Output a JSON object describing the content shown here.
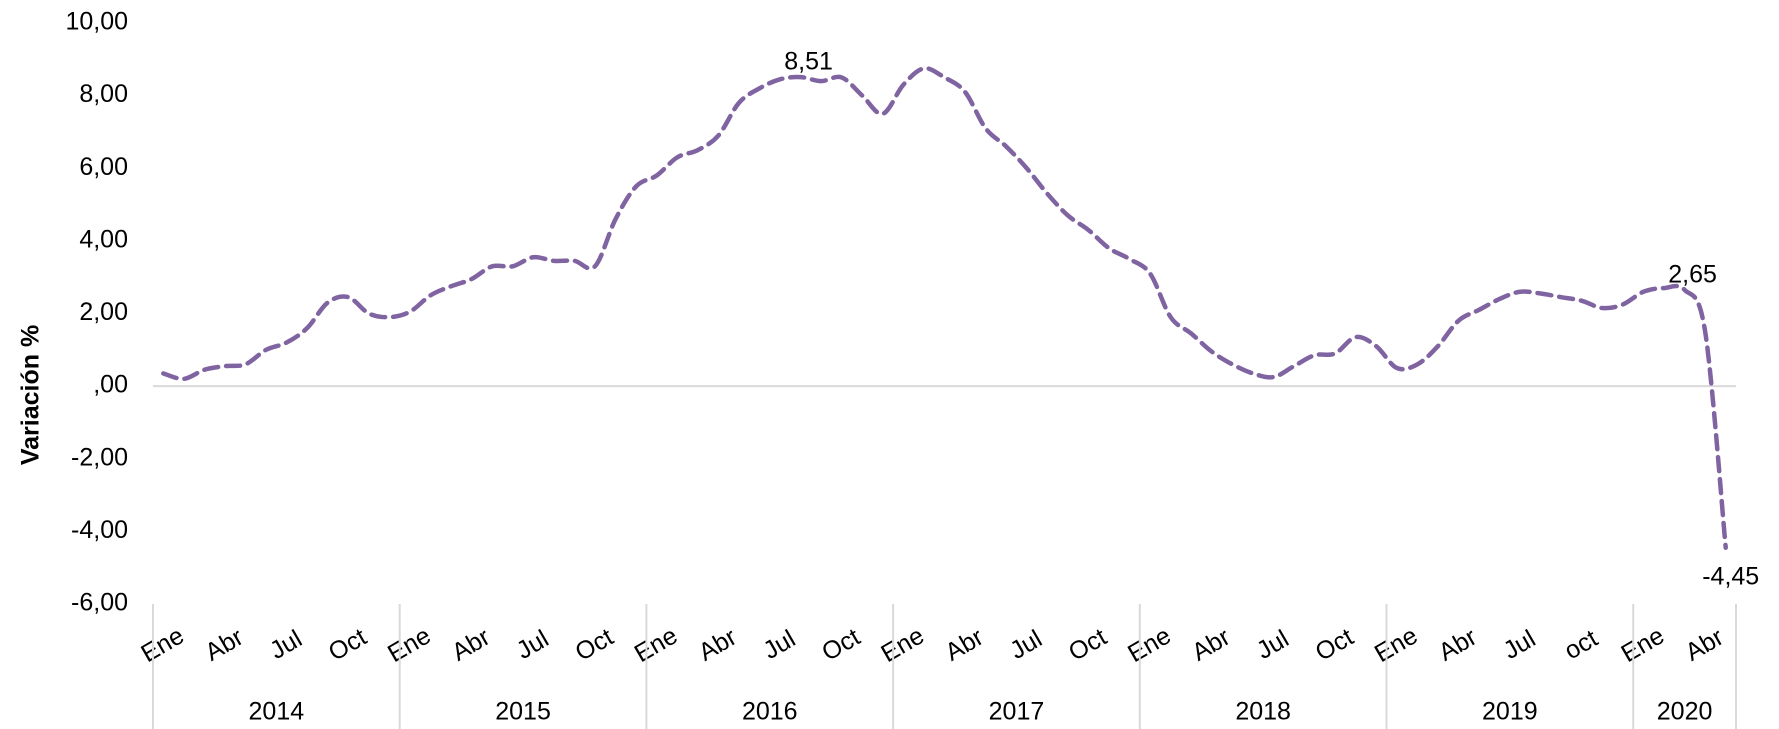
{
  "chart_data": {
    "type": "line",
    "y_label": "Variación %",
    "categories": [
      "Ene",
      null,
      null,
      "Abr",
      null,
      null,
      "Jul",
      null,
      null,
      "Oct",
      null,
      null,
      "Ene",
      null,
      null,
      "Abr",
      null,
      null,
      "Jul",
      null,
      null,
      "Oct",
      null,
      null,
      "Ene",
      null,
      null,
      "Abr",
      null,
      null,
      "Jul",
      null,
      null,
      "Oct",
      null,
      null,
      "Ene",
      null,
      null,
      "Abr",
      null,
      null,
      "Jul",
      null,
      null,
      "Oct",
      null,
      null,
      "Ene",
      null,
      null,
      "Abr",
      null,
      null,
      "Jul",
      null,
      null,
      "Oct",
      null,
      null,
      "Ene",
      null,
      null,
      "Abr",
      null,
      null,
      "Jul",
      null,
      null,
      "oct",
      null,
      null,
      "Ene",
      null,
      null,
      "Abr",
      null
    ],
    "groups": [
      "2014",
      "2015",
      "2016",
      "2017",
      "2018",
      "2019",
      "2020"
    ],
    "series": [
      {
        "name": "Variación %",
        "color": "#8064a2",
        "values": [
          0.35,
          0.2,
          0.45,
          0.55,
          0.6,
          1.0,
          1.2,
          1.6,
          2.3,
          2.45,
          2.0,
          1.9,
          2.05,
          2.5,
          2.75,
          2.95,
          3.3,
          3.3,
          3.55,
          3.45,
          3.45,
          3.3,
          4.6,
          5.5,
          5.8,
          6.3,
          6.5,
          6.9,
          7.8,
          8.2,
          8.45,
          8.51,
          8.4,
          8.5,
          8.0,
          7.5,
          8.3,
          8.75,
          8.5,
          8.1,
          7.1,
          6.6,
          6.0,
          5.3,
          4.7,
          4.3,
          3.8,
          3.5,
          3.1,
          1.9,
          1.45,
          0.95,
          0.6,
          0.35,
          0.25,
          0.55,
          0.85,
          0.9,
          1.35,
          1.1,
          0.5,
          0.6,
          1.1,
          1.8,
          2.1,
          2.4,
          2.6,
          2.55,
          2.45,
          2.35,
          2.15,
          2.25,
          2.6,
          2.7,
          2.65,
          1.5,
          -4.45
        ],
        "value_labels": [
          null,
          null,
          null,
          null,
          null,
          null,
          null,
          null,
          null,
          null,
          null,
          null,
          null,
          null,
          null,
          null,
          null,
          null,
          null,
          null,
          null,
          null,
          null,
          null,
          null,
          null,
          null,
          null,
          null,
          null,
          null,
          "8,51",
          null,
          null,
          null,
          null,
          null,
          null,
          null,
          null,
          null,
          null,
          null,
          null,
          null,
          null,
          null,
          null,
          null,
          null,
          null,
          null,
          null,
          null,
          null,
          null,
          null,
          null,
          null,
          null,
          null,
          null,
          null,
          null,
          null,
          null,
          null,
          null,
          null,
          null,
          null,
          null,
          null,
          null,
          "2,65",
          null,
          "-4,45"
        ]
      }
    ],
    "ylim": [
      -6,
      10
    ],
    "yticks": [
      {
        "value": -6,
        "label": "-6,00"
      },
      {
        "value": -4,
        "label": "-4,00"
      },
      {
        "value": -2,
        "label": "-2,00"
      },
      {
        "value": 0,
        "label": ",00"
      },
      {
        "value": 2,
        "label": "2,00"
      },
      {
        "value": 4,
        "label": "4,00"
      },
      {
        "value": 6,
        "label": "6,00"
      },
      {
        "value": 8,
        "label": "8,00"
      },
      {
        "value": 10,
        "label": "10,00"
      }
    ],
    "grid": false,
    "dashed": true
  }
}
